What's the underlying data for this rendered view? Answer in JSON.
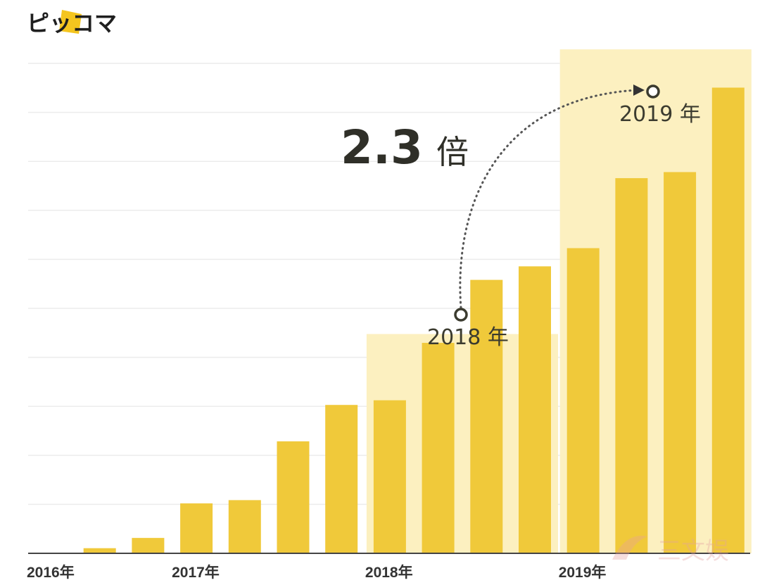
{
  "logo": {
    "text": "ピッコマ"
  },
  "colors": {
    "bar": "#f0c93a",
    "highlight": "#fcf0c0",
    "grid": "#ececec",
    "axis": "#444444",
    "text": "#333333"
  },
  "chart_data": {
    "type": "bar",
    "title": "",
    "xlabel": "",
    "ylabel": "",
    "tick_labels": [
      {
        "label": "2016年",
        "at_bar": 0
      },
      {
        "label": "2017年",
        "at_bar": 3
      },
      {
        "label": "2018年",
        "at_bar": 7
      },
      {
        "label": "2019年",
        "at_bar": 11
      }
    ],
    "values": [
      0,
      1.1,
      3.3,
      10.7,
      11.4,
      24.0,
      31.8,
      32.8,
      45.1,
      58.6,
      61.5,
      65.4,
      80.4,
      81.7,
      99.8
    ],
    "ylim": [
      0,
      105
    ],
    "grid": true,
    "highlight_ranges": [
      {
        "from_bar": 7,
        "to_bar": 10,
        "label": "2018 年",
        "peak_value": 47
      },
      {
        "from_bar": 11,
        "to_bar": 14,
        "label": "2019 年",
        "peak_value": 108
      }
    ],
    "annotation": {
      "text": "2.3 倍",
      "number": "2.3",
      "unit": "倍"
    }
  },
  "watermark": {
    "text": "三文娱"
  }
}
